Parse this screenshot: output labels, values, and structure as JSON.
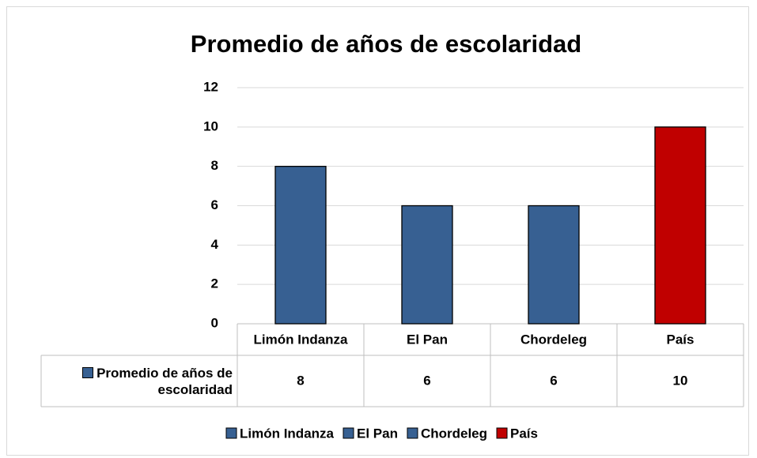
{
  "chart_data": {
    "type": "bar",
    "title": "Promedio de años de escolaridad",
    "categories": [
      "Limón Indanza",
      "El Pan",
      "Chordeleg",
      "País"
    ],
    "series": [
      {
        "name": "Promedio de años de escolaridad",
        "colors": [
          "#376092",
          "#376092",
          "#376092",
          "#c00000"
        ],
        "values": [
          8,
          6,
          6,
          10
        ]
      }
    ],
    "ylim": [
      0,
      12
    ],
    "yticks": [
      0,
      2,
      4,
      6,
      8,
      10,
      12
    ],
    "grid": true,
    "legend": "bottom",
    "data_table": true
  }
}
